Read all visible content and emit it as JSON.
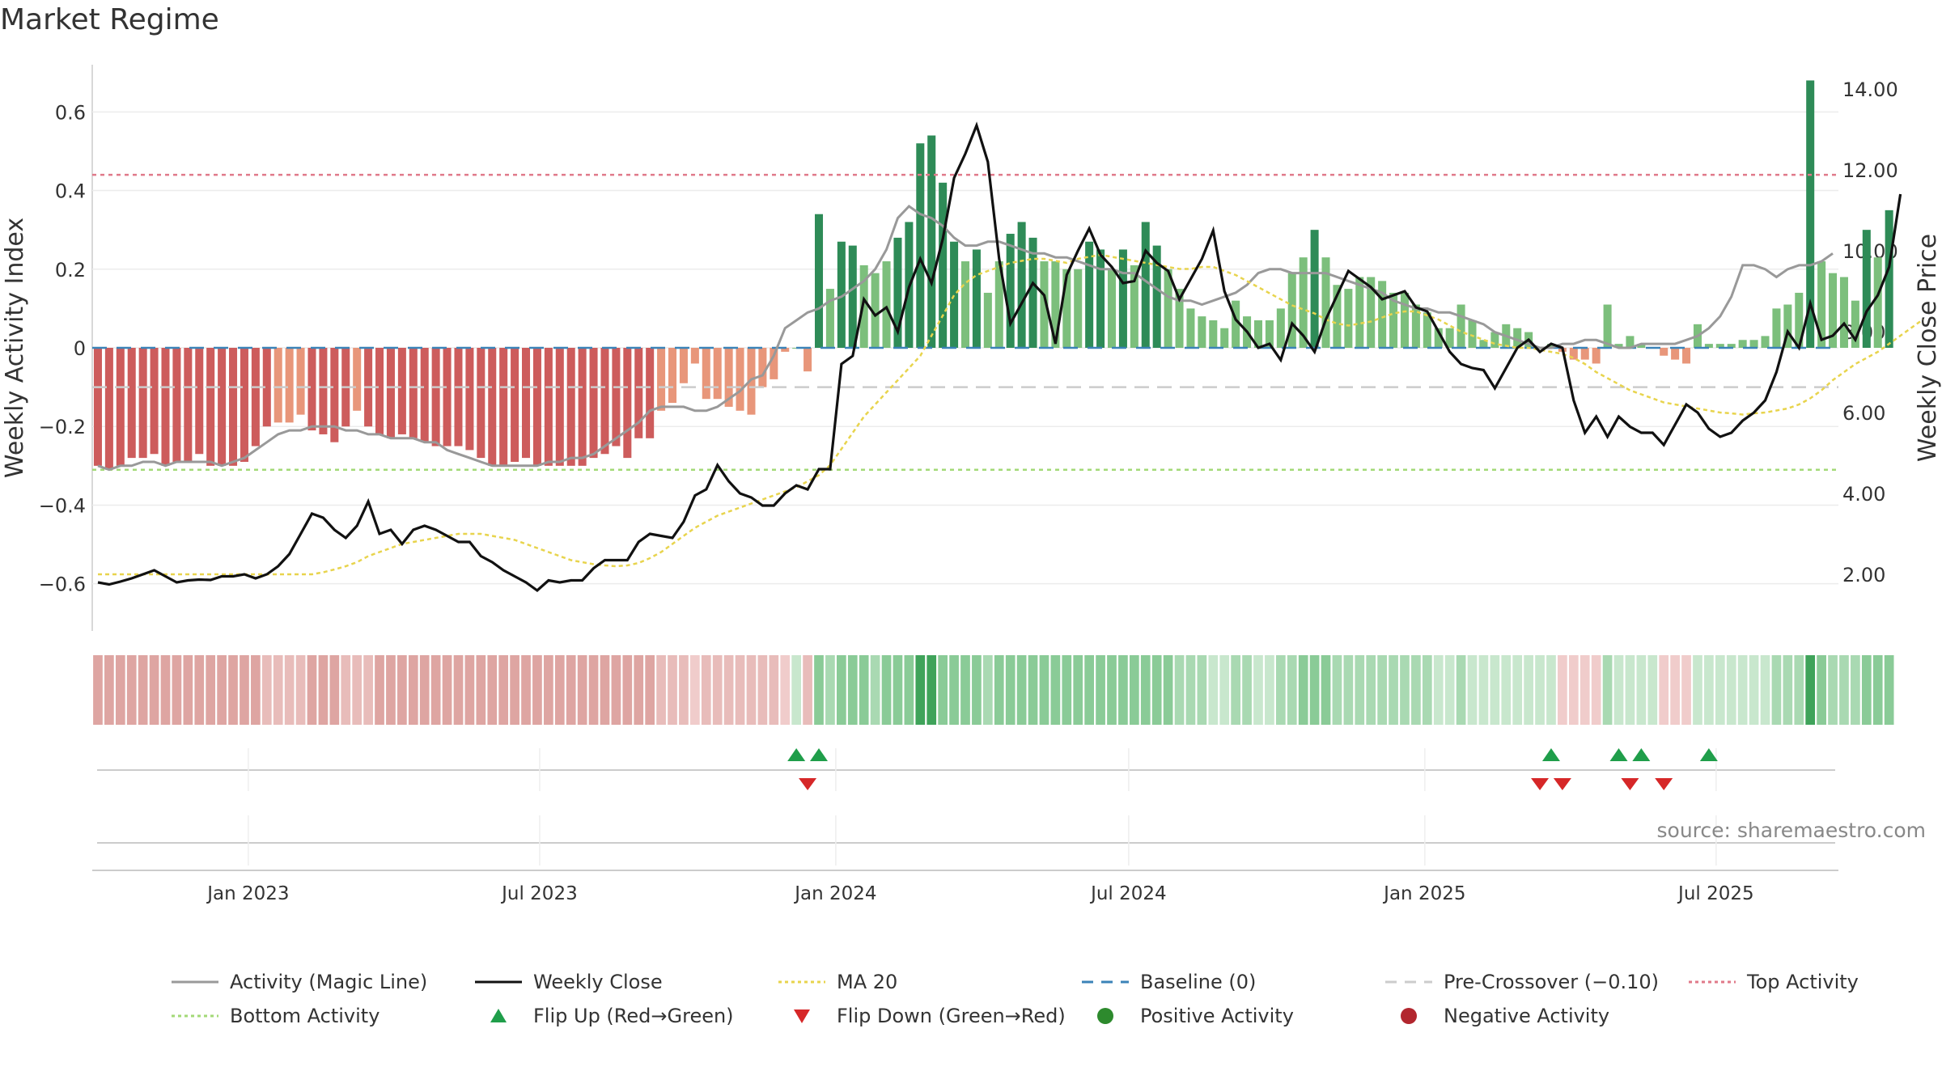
{
  "title": "Market Regime",
  "source": "source: sharemaestro.com",
  "chart_data": {
    "type": "bar",
    "title": "Market Regime",
    "x_ticks": [
      "Jan 2023",
      "Jul 2023",
      "Jan 2024",
      "Jul 2024",
      "Jan 2025",
      "Jul 2025"
    ],
    "y_left": {
      "label": "Weekly Activity Index",
      "ticks": [
        "0.6",
        "0.4",
        "0.2",
        "0",
        "−0.2",
        "−0.4",
        "−0.6"
      ],
      "range": [
        -0.72,
        0.72
      ]
    },
    "y_right": {
      "label": "Weekly Close Price",
      "ticks": [
        "14.00",
        "12.00",
        "10.00",
        "8.00",
        "6.00",
        "4.00",
        "2.00"
      ],
      "range": [
        0.6,
        14.6
      ]
    },
    "reference_lines": {
      "top_activity": 0.44,
      "bottom_activity": -0.31,
      "baseline": 0,
      "pre_crossover": -0.1
    },
    "start_date": "2022-09-26",
    "series": [
      {
        "name": "Activity (Magic Line)",
        "type": "line",
        "color": "#999999",
        "values": [
          -0.3,
          -0.31,
          -0.3,
          -0.3,
          -0.29,
          -0.29,
          -0.3,
          -0.29,
          -0.29,
          -0.29,
          -0.29,
          -0.3,
          -0.29,
          -0.28,
          -0.26,
          -0.24,
          -0.22,
          -0.21,
          -0.21,
          -0.2,
          -0.2,
          -0.2,
          -0.21,
          -0.21,
          -0.22,
          -0.22,
          -0.23,
          -0.23,
          -0.23,
          -0.24,
          -0.24,
          -0.26,
          -0.27,
          -0.28,
          -0.29,
          -0.3,
          -0.3,
          -0.3,
          -0.3,
          -0.3,
          -0.29,
          -0.29,
          -0.28,
          -0.28,
          -0.27,
          -0.25,
          -0.23,
          -0.21,
          -0.19,
          -0.16,
          -0.15,
          -0.15,
          -0.15,
          -0.16,
          -0.16,
          -0.15,
          -0.13,
          -0.11,
          -0.08,
          -0.07,
          -0.02,
          0.05,
          0.07,
          0.09,
          0.1,
          0.12,
          0.13,
          0.15,
          0.17,
          0.2,
          0.25,
          0.33,
          0.36,
          0.34,
          0.33,
          0.31,
          0.28,
          0.26,
          0.26,
          0.27,
          0.27,
          0.26,
          0.25,
          0.24,
          0.24,
          0.23,
          0.23,
          0.22,
          0.21,
          0.2,
          0.2,
          0.19,
          0.19,
          0.17,
          0.15,
          0.13,
          0.12,
          0.12,
          0.11,
          0.12,
          0.13,
          0.14,
          0.16,
          0.19,
          0.2,
          0.2,
          0.19,
          0.19,
          0.19,
          0.19,
          0.18,
          0.17,
          0.16,
          0.15,
          0.14,
          0.12,
          0.11,
          0.1,
          0.1,
          0.09,
          0.09,
          0.08,
          0.07,
          0.06,
          0.04,
          0.03,
          0.02,
          0.01,
          0.0,
          0.0,
          0.01,
          0.01,
          0.02,
          0.02,
          0.01,
          0.0,
          0.0,
          0.01,
          0.01,
          0.01,
          0.01,
          0.02,
          0.03,
          0.05,
          0.08,
          0.13,
          0.21,
          0.21,
          0.2,
          0.18,
          0.2,
          0.21,
          0.21,
          0.22,
          0.24
        ]
      },
      {
        "name": "Weekly Close",
        "type": "line",
        "color": "#111111",
        "values": [
          1.8,
          1.75,
          1.82,
          1.9,
          2.0,
          2.1,
          1.95,
          1.8,
          1.85,
          1.87,
          1.86,
          1.95,
          1.95,
          2.0,
          1.9,
          2.0,
          2.2,
          2.5,
          3.0,
          3.5,
          3.4,
          3.1,
          2.9,
          3.2,
          3.8,
          3.0,
          3.1,
          2.75,
          3.1,
          3.2,
          3.1,
          2.95,
          2.8,
          2.8,
          2.45,
          2.3,
          2.1,
          1.95,
          1.8,
          1.6,
          1.85,
          1.8,
          1.85,
          1.85,
          2.15,
          2.35,
          2.35,
          2.35,
          2.8,
          3.0,
          2.95,
          2.9,
          3.3,
          3.95,
          4.1,
          4.7,
          4.3,
          4.0,
          3.9,
          3.7,
          3.7,
          4.0,
          4.2,
          4.1,
          4.6,
          4.6,
          7.2,
          7.4,
          8.8,
          8.4,
          8.6,
          8.0,
          9.1,
          9.8,
          9.2,
          10.3,
          11.8,
          12.4,
          13.1,
          12.2,
          9.8,
          8.2,
          8.7,
          9.2,
          8.9,
          7.7,
          9.4,
          10.0,
          10.55,
          9.9,
          9.6,
          9.2,
          9.25,
          10.0,
          9.7,
          9.5,
          8.8,
          9.3,
          9.8,
          10.5,
          9.0,
          8.3,
          8.0,
          7.6,
          7.7,
          7.3,
          8.2,
          7.9,
          7.5,
          8.3,
          8.9,
          9.5,
          9.3,
          9.1,
          8.8,
          8.9,
          9.0,
          8.6,
          8.5,
          8.0,
          7.5,
          7.2,
          7.1,
          7.05,
          6.6,
          7.1,
          7.6,
          7.8,
          7.5,
          7.7,
          7.6,
          6.3,
          5.5,
          5.9,
          5.4,
          5.9,
          5.65,
          5.5,
          5.5,
          5.2,
          5.7,
          6.2,
          6.0,
          5.6,
          5.4,
          5.5,
          5.8,
          6.0,
          6.3,
          7.0,
          8.0,
          7.6,
          8.7,
          7.8,
          7.9,
          8.2,
          7.8,
          8.5,
          8.9,
          9.6,
          11.4
        ]
      },
      {
        "name": "MA 20",
        "type": "line",
        "color": "#e8d44d",
        "values": [
          2.0,
          2.0,
          2.0,
          2.0,
          2.0,
          2.0,
          2.0,
          2.0,
          2.0,
          2.0,
          2.0,
          2.0,
          2.0,
          2.0,
          2.0,
          2.0,
          2.0,
          2.0,
          2.0,
          2.0,
          2.05,
          2.12,
          2.2,
          2.3,
          2.45,
          2.55,
          2.65,
          2.75,
          2.8,
          2.85,
          2.9,
          2.95,
          3.0,
          3.0,
          3.0,
          2.95,
          2.9,
          2.85,
          2.75,
          2.65,
          2.55,
          2.45,
          2.35,
          2.3,
          2.25,
          2.22,
          2.2,
          2.22,
          2.28,
          2.4,
          2.55,
          2.75,
          2.95,
          3.15,
          3.3,
          3.45,
          3.55,
          3.65,
          3.75,
          3.85,
          3.95,
          4.05,
          4.15,
          4.3,
          4.45,
          4.7,
          5.1,
          5.5,
          5.9,
          6.2,
          6.5,
          6.8,
          7.1,
          7.4,
          7.9,
          8.4,
          8.9,
          9.2,
          9.4,
          9.5,
          9.6,
          9.7,
          9.75,
          9.8,
          9.8,
          9.75,
          9.7,
          9.8,
          9.85,
          9.9,
          9.85,
          9.8,
          9.75,
          9.7,
          9.65,
          9.6,
          9.55,
          9.55,
          9.6,
          9.6,
          9.5,
          9.4,
          9.25,
          9.1,
          8.95,
          8.8,
          8.65,
          8.55,
          8.45,
          8.3,
          8.2,
          8.15,
          8.2,
          8.25,
          8.35,
          8.45,
          8.5,
          8.5,
          8.4,
          8.3,
          8.15,
          8.0,
          7.9,
          7.8,
          7.7,
          7.65,
          7.6,
          7.6,
          7.55,
          7.5,
          7.45,
          7.35,
          7.2,
          7.0,
          6.85,
          6.7,
          6.55,
          6.45,
          6.35,
          6.25,
          6.2,
          6.15,
          6.1,
          6.05,
          6.0,
          5.98,
          5.95,
          5.98,
          6.0,
          6.05,
          6.1,
          6.2,
          6.35,
          6.55,
          6.8,
          7.0,
          7.2,
          7.35,
          7.5,
          7.7,
          7.9,
          8.1,
          8.3
        ]
      },
      {
        "name": "Weekly Activity Index (bars)",
        "type": "bar",
        "values": [
          -0.3,
          -0.31,
          -0.3,
          -0.28,
          -0.28,
          -0.27,
          -0.3,
          -0.29,
          -0.29,
          -0.27,
          -0.3,
          -0.3,
          -0.3,
          -0.29,
          -0.25,
          -0.2,
          -0.19,
          -0.19,
          -0.17,
          -0.21,
          -0.22,
          -0.24,
          -0.2,
          -0.16,
          -0.2,
          -0.22,
          -0.23,
          -0.22,
          -0.23,
          -0.24,
          -0.25,
          -0.25,
          -0.25,
          -0.26,
          -0.28,
          -0.3,
          -0.3,
          -0.29,
          -0.28,
          -0.3,
          -0.3,
          -0.3,
          -0.3,
          -0.3,
          -0.28,
          -0.27,
          -0.25,
          -0.28,
          -0.23,
          -0.23,
          -0.16,
          -0.14,
          -0.09,
          -0.04,
          -0.13,
          -0.13,
          -0.15,
          -0.16,
          -0.17,
          -0.1,
          -0.08,
          -0.01,
          0.0,
          -0.06,
          0.34,
          0.15,
          0.27,
          0.26,
          0.21,
          0.19,
          0.22,
          0.28,
          0.32,
          0.52,
          0.54,
          0.42,
          0.27,
          0.22,
          0.25,
          0.14,
          0.22,
          0.29,
          0.32,
          0.28,
          0.22,
          0.22,
          0.2,
          0.2,
          0.27,
          0.25,
          0.2,
          0.25,
          0.21,
          0.32,
          0.26,
          0.2,
          0.15,
          0.1,
          0.08,
          0.07,
          0.05,
          0.12,
          0.08,
          0.07,
          0.07,
          0.1,
          0.19,
          0.23,
          0.3,
          0.23,
          0.16,
          0.15,
          0.18,
          0.18,
          0.17,
          0.14,
          0.14,
          0.11,
          0.09,
          0.05,
          0.05,
          0.11,
          0.07,
          0.02,
          0.04,
          0.06,
          0.05,
          0.04,
          0.0,
          0.01,
          -0.01,
          -0.03,
          -0.03,
          -0.04,
          0.11,
          0.01,
          0.03,
          0.01,
          0.0,
          -0.02,
          -0.03,
          -0.04,
          0.06,
          0.01,
          0.01,
          0.01,
          0.02,
          0.02,
          0.03,
          0.1,
          0.11,
          0.14,
          0.68,
          0.22,
          0.19,
          0.18,
          0.12,
          0.3,
          0.23,
          0.35
        ]
      }
    ],
    "flip_up_dates": [
      "2023-12-04",
      "2023-12-18",
      "2025-03-17",
      "2025-04-28",
      "2025-05-12",
      "2025-06-23"
    ],
    "flip_down_dates": [
      "2023-12-11",
      "2025-03-10",
      "2025-03-24",
      "2025-05-05",
      "2025-05-26"
    ],
    "legend": [
      {
        "label": "Activity (Magic Line)",
        "style": "line",
        "color": "#999999"
      },
      {
        "label": "Weekly Close",
        "style": "line",
        "color": "#111111"
      },
      {
        "label": "MA 20",
        "style": "dotted",
        "color": "#e8d44d"
      },
      {
        "label": "Baseline (0)",
        "style": "dashed",
        "color": "#3b83b8"
      },
      {
        "label": "Pre-Crossover (−0.10)",
        "style": "dashed",
        "color": "#cccccc"
      },
      {
        "label": "Top Activity",
        "style": "dotted",
        "color": "#e07a8a"
      },
      {
        "label": "Bottom Activity",
        "style": "dotted",
        "color": "#a3d977"
      },
      {
        "label": "Flip Up (Red→Green)",
        "style": "triangle-up",
        "color": "#1f9e4a"
      },
      {
        "label": "Flip Down (Green→Red)",
        "style": "triangle-down",
        "color": "#d62728"
      },
      {
        "label": "Positive Activity",
        "style": "circle",
        "color": "#2d8a2d"
      },
      {
        "label": "Negative Activity",
        "style": "circle",
        "color": "#b2262e"
      }
    ],
    "grid": true,
    "legend_position": "bottom"
  }
}
